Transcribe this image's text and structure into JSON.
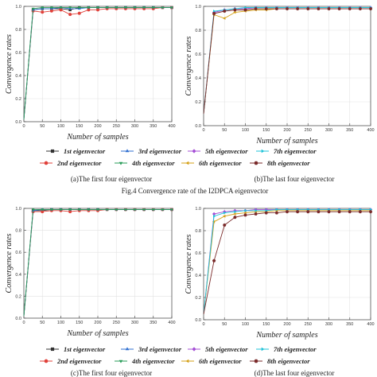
{
  "figure_caption": "Fig.4 Convergence rate of the I2DPCA eigenvector",
  "captions": {
    "a": "(a)The first four eigenvector",
    "b": "(b)The last four eigenvector",
    "c": "(c)The first four eigenvector",
    "d": "(d)The last four eigenvector"
  },
  "legend_items": [
    {
      "name": "1st eigenvector",
      "color": "#333333",
      "marker": "square"
    },
    {
      "name": "2nd eigenvector",
      "color": "#e0403a",
      "marker": "circle"
    },
    {
      "name": "3rd eigenvector",
      "color": "#2f6fd0",
      "marker": "triangle-up"
    },
    {
      "name": "4th eigenvector",
      "color": "#2a9d5a",
      "marker": "triangle-down"
    },
    {
      "name": "5th eigenvector",
      "color": "#a54fd6",
      "marker": "diamond"
    },
    {
      "name": "6th eigenvector",
      "color": "#d4a017",
      "marker": "triangle-left"
    },
    {
      "name": "7th eigenvector",
      "color": "#1fc3d8",
      "marker": "triangle-right"
    },
    {
      "name": "8th eigenvector",
      "color": "#7a2a2a",
      "marker": "hexagon"
    }
  ],
  "chart_data": [
    {
      "id": "a",
      "type": "line",
      "xlabel": "Number of samples",
      "ylabel": "Convergence rates",
      "xlim": [
        0,
        400
      ],
      "ylim": [
        0,
        1.0
      ],
      "xticks": [
        0,
        50,
        100,
        150,
        200,
        250,
        300,
        350,
        400
      ],
      "yticks": [
        0.0,
        0.2,
        0.4,
        0.6,
        0.8,
        1.0
      ],
      "x": [
        0,
        25,
        50,
        75,
        100,
        125,
        150,
        175,
        200,
        225,
        250,
        275,
        300,
        325,
        350,
        375,
        400
      ],
      "series": [
        {
          "name": "1st eigenvector",
          "values": [
            0.02,
            0.97,
            0.98,
            0.98,
            0.98,
            0.97,
            0.99,
            0.99,
            0.99,
            0.99,
            0.99,
            0.99,
            0.99,
            0.99,
            0.99,
            0.99,
            0.99
          ]
        },
        {
          "name": "2nd eigenvector",
          "values": [
            0.02,
            0.96,
            0.95,
            0.96,
            0.97,
            0.93,
            0.94,
            0.97,
            0.97,
            0.98,
            0.98,
            0.98,
            0.98,
            0.98,
            0.98,
            0.99,
            0.99
          ]
        },
        {
          "name": "3rd eigenvector",
          "values": [
            0.02,
            0.97,
            0.98,
            0.98,
            0.99,
            0.98,
            0.98,
            0.99,
            0.99,
            0.99,
            0.99,
            0.99,
            0.99,
            0.99,
            0.99,
            0.99,
            0.99
          ]
        },
        {
          "name": "4th eigenvector",
          "values": [
            0.02,
            0.98,
            0.99,
            0.99,
            0.99,
            0.99,
            0.99,
            0.99,
            0.99,
            0.99,
            0.99,
            0.99,
            0.99,
            0.99,
            0.99,
            0.99,
            0.99
          ]
        }
      ]
    },
    {
      "id": "b",
      "type": "line",
      "xlabel": "Number of samples",
      "ylabel": "Convergence rates",
      "xlim": [
        0,
        400
      ],
      "ylim": [
        0,
        1.0
      ],
      "xticks": [
        0,
        50,
        100,
        150,
        200,
        250,
        300,
        350,
        400
      ],
      "yticks": [
        0.0,
        0.2,
        0.4,
        0.6,
        0.8,
        1.0
      ],
      "x": [
        0,
        25,
        50,
        75,
        100,
        125,
        150,
        175,
        200,
        225,
        250,
        275,
        300,
        325,
        350,
        375,
        400
      ],
      "series": [
        {
          "name": "5th eigenvector",
          "values": [
            0.1,
            0.95,
            0.97,
            0.98,
            0.98,
            0.99,
            0.99,
            0.99,
            0.99,
            0.99,
            0.99,
            0.99,
            0.99,
            0.99,
            0.99,
            0.99,
            0.99
          ]
        },
        {
          "name": "6th eigenvector",
          "values": [
            0.1,
            0.93,
            0.9,
            0.95,
            0.96,
            0.97,
            0.97,
            0.98,
            0.98,
            0.98,
            0.98,
            0.98,
            0.98,
            0.98,
            0.98,
            0.98,
            0.98
          ]
        },
        {
          "name": "7th eigenvector",
          "values": [
            0.1,
            0.96,
            0.97,
            0.98,
            0.99,
            0.99,
            0.99,
            0.99,
            0.99,
            0.99,
            0.99,
            0.99,
            0.99,
            0.99,
            0.99,
            0.99,
            0.99
          ]
        },
        {
          "name": "8th eigenvector",
          "values": [
            0.1,
            0.94,
            0.96,
            0.97,
            0.97,
            0.98,
            0.98,
            0.98,
            0.98,
            0.98,
            0.98,
            0.98,
            0.98,
            0.98,
            0.98,
            0.98,
            0.98
          ]
        }
      ]
    },
    {
      "id": "c",
      "type": "line",
      "xlabel": "Number of samples",
      "ylabel": "Convergence rates",
      "xlim": [
        0,
        400
      ],
      "ylim": [
        0,
        1.0
      ],
      "xticks": [
        0,
        50,
        100,
        150,
        200,
        250,
        300,
        350,
        400
      ],
      "yticks": [
        0.0,
        0.2,
        0.4,
        0.6,
        0.8,
        1.0
      ],
      "x": [
        0,
        25,
        50,
        75,
        100,
        125,
        150,
        175,
        200,
        225,
        250,
        275,
        300,
        325,
        350,
        375,
        400
      ],
      "series": [
        {
          "name": "1st eigenvector",
          "values": [
            0.02,
            0.98,
            0.98,
            0.99,
            0.99,
            0.99,
            0.99,
            0.99,
            0.99,
            0.99,
            0.99,
            0.99,
            0.99,
            0.99,
            0.99,
            0.99,
            0.99
          ]
        },
        {
          "name": "2nd eigenvector",
          "values": [
            0.02,
            0.97,
            0.97,
            0.98,
            0.98,
            0.97,
            0.98,
            0.98,
            0.98,
            0.99,
            0.99,
            0.99,
            0.99,
            0.99,
            0.99,
            0.99,
            0.99
          ]
        },
        {
          "name": "3rd eigenvector",
          "values": [
            0.02,
            0.98,
            0.99,
            0.99,
            0.99,
            0.99,
            0.99,
            0.99,
            0.99,
            0.99,
            0.99,
            0.99,
            0.99,
            0.99,
            0.99,
            0.99,
            0.99
          ]
        },
        {
          "name": "4th eigenvector",
          "values": [
            0.02,
            0.99,
            0.99,
            0.99,
            0.99,
            0.99,
            0.99,
            0.99,
            0.99,
            0.99,
            0.99,
            0.99,
            0.99,
            0.99,
            0.99,
            0.99,
            0.99
          ]
        }
      ]
    },
    {
      "id": "d",
      "type": "line",
      "xlabel": "Number of samples",
      "ylabel": "Convergence rates",
      "xlim": [
        0,
        400
      ],
      "ylim": [
        0,
        1.0
      ],
      "xticks": [
        0,
        50,
        100,
        150,
        200,
        250,
        300,
        350,
        400
      ],
      "yticks": [
        0.0,
        0.2,
        0.4,
        0.6,
        0.8,
        1.0
      ],
      "x": [
        0,
        25,
        50,
        75,
        100,
        125,
        150,
        175,
        200,
        225,
        250,
        275,
        300,
        325,
        350,
        375,
        400
      ],
      "series": [
        {
          "name": "5th eigenvector",
          "values": [
            0.05,
            0.95,
            0.97,
            0.98,
            0.98,
            0.99,
            0.99,
            0.99,
            0.99,
            0.99,
            0.99,
            0.99,
            0.99,
            0.99,
            0.99,
            0.99,
            0.99
          ]
        },
        {
          "name": "6th eigenvector",
          "values": [
            0.05,
            0.88,
            0.93,
            0.95,
            0.96,
            0.97,
            0.97,
            0.98,
            0.98,
            0.98,
            0.98,
            0.98,
            0.98,
            0.98,
            0.98,
            0.98,
            0.98
          ]
        },
        {
          "name": "7th eigenvector",
          "values": [
            0.05,
            0.93,
            0.96,
            0.97,
            0.98,
            0.98,
            0.98,
            0.99,
            0.99,
            0.99,
            0.99,
            0.99,
            0.99,
            0.99,
            0.99,
            0.99,
            0.99
          ]
        },
        {
          "name": "8th eigenvector",
          "values": [
            0.05,
            0.53,
            0.85,
            0.92,
            0.94,
            0.95,
            0.96,
            0.96,
            0.97,
            0.97,
            0.97,
            0.97,
            0.97,
            0.97,
            0.97,
            0.97,
            0.97
          ]
        }
      ]
    }
  ]
}
